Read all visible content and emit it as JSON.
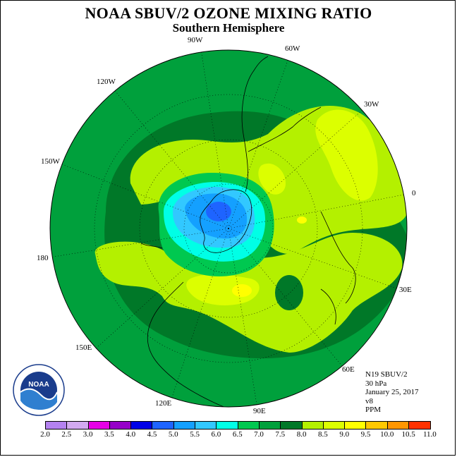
{
  "title": "NOAA SBUV/2 OZONE MIXING RATIO",
  "subtitle": "Southern Hemisphere",
  "longitude_labels": [
    {
      "key": "90W",
      "text": "90W"
    },
    {
      "key": "60W",
      "text": "60W"
    },
    {
      "key": "120W",
      "text": "120W"
    },
    {
      "key": "30W",
      "text": "30W"
    },
    {
      "key": "150W",
      "text": "150W"
    },
    {
      "key": "0",
      "text": "0"
    },
    {
      "key": "180",
      "text": "180"
    },
    {
      "key": "30E",
      "text": "30E"
    },
    {
      "key": "150E",
      "text": "150E"
    },
    {
      "key": "60E",
      "text": "60E"
    },
    {
      "key": "120E",
      "text": "120E"
    },
    {
      "key": "90E",
      "text": "90E"
    }
  ],
  "info": {
    "satellite": "N19 SBUV/2",
    "level": "30 hPa",
    "date": "January 25, 2017",
    "version": "v8",
    "units": "PPM"
  },
  "logo": {
    "text": "NOAA",
    "ring_text": "NATIONAL OCEANIC AND ATMOSPHERIC ADMINISTRATION • U.S. DEPARTMENT OF COMMERCE"
  },
  "colorbar": {
    "ticks": [
      "2.0",
      "2.5",
      "3.0",
      "3.5",
      "4.0",
      "4.5",
      "5.0",
      "5.5",
      "6.0",
      "6.5",
      "7.0",
      "7.5",
      "8.0",
      "8.5",
      "9.0",
      "9.5",
      "10.0",
      "10.5",
      "11.0"
    ],
    "colors": [
      "#b482f0",
      "#d2aaf0",
      "#e600e6",
      "#9600c8",
      "#0000e6",
      "#1e64ff",
      "#14a0ff",
      "#32c8ff",
      "#00ffe6",
      "#00c850",
      "#00a03c",
      "#007828",
      "#b4f000",
      "#dcff00",
      "#ffff00",
      "#ffc800",
      "#ff9600",
      "#ff3200",
      "#e60000",
      "#8c5a32"
    ]
  }
}
